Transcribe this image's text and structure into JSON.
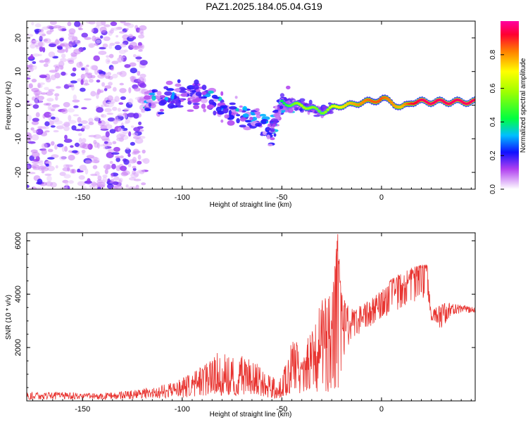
{
  "title": "PAZ1.2025.184.05.04.G19",
  "chart_data": [
    {
      "type": "heatmap",
      "xlabel": "Height of straight line (km)",
      "ylabel": "Frequency (Hz)",
      "xlim": [
        -178,
        47
      ],
      "ylim": [
        -25,
        25
      ],
      "xticks": [
        -150,
        -100,
        -50,
        0
      ],
      "yticks": [
        -20,
        -10,
        0,
        10,
        20
      ],
      "colorbar": {
        "label": "Normalized spectral amplitude",
        "range": [
          0,
          1
        ],
        "ticks": [
          "0.0",
          "0.2",
          "0.4",
          "0.6",
          "0.8"
        ]
      },
      "ridge": {
        "x": [
          -120,
          -100,
          -90,
          -80,
          -70,
          -60,
          -55,
          -50,
          -45,
          -40,
          -35,
          -30,
          -25,
          -20,
          -15,
          -10,
          -5,
          0,
          5,
          10,
          15,
          20,
          25,
          30,
          35,
          40,
          45
        ],
        "freq": [
          1,
          3,
          2,
          -1,
          -3,
          -5,
          -7,
          1,
          0,
          0,
          -1,
          -2,
          -1,
          0,
          0,
          1,
          1,
          2,
          1,
          -1,
          1,
          1,
          1,
          1,
          1,
          1,
          1
        ],
        "amplitude": [
          0.3,
          0.35,
          0.3,
          0.3,
          0.3,
          0.3,
          0.25,
          0.4,
          0.5,
          0.6,
          0.55,
          0.5,
          0.65,
          0.7,
          0.75,
          0.8,
          0.85,
          0.85,
          0.8,
          0.75,
          0.9,
          0.95,
          0.95,
          0.95,
          0.95,
          0.95,
          0.95
        ]
      }
    },
    {
      "type": "line",
      "xlabel": "Height of straight line (km)",
      "ylabel": "SNR (10 * v/v)",
      "xlim": [
        -178,
        47
      ],
      "ylim": [
        0,
        6300
      ],
      "xticks": [
        -150,
        -100,
        -50,
        0
      ],
      "yticks": [
        2000,
        4000,
        6000
      ],
      "series": [
        {
          "color": "#e8322e",
          "x": [
            -178,
            -170,
            -160,
            -150,
            -140,
            -130,
            -120,
            -110,
            -100,
            -95,
            -90,
            -85,
            -80,
            -75,
            -70,
            -65,
            -60,
            -55,
            -50,
            -45,
            -40,
            -35,
            -30,
            -25,
            -22,
            -20,
            -15,
            -10,
            -5,
            0,
            5,
            10,
            15,
            20,
            23,
            25,
            30,
            35,
            40,
            47
          ],
          "y": [
            150,
            200,
            200,
            180,
            180,
            200,
            250,
            350,
            450,
            650,
            750,
            850,
            800,
            700,
            800,
            750,
            650,
            400,
            300,
            1200,
            1300,
            1600,
            2000,
            2500,
            6100,
            3000,
            2800,
            3000,
            3400,
            3600,
            4200,
            4400,
            4600,
            4900,
            4950,
            3100,
            3400,
            3500,
            3450,
            3400
          ],
          "y_min": [
            50,
            50,
            50,
            50,
            50,
            60,
            80,
            100,
            120,
            150,
            150,
            200,
            200,
            200,
            200,
            200,
            150,
            100,
            100,
            200,
            300,
            300,
            300,
            300,
            500,
            1000,
            2200,
            2600,
            2800,
            3100,
            3200,
            3500,
            3700,
            3800,
            3900,
            3000,
            2700,
            3200,
            3300,
            3300
          ],
          "y_max": [
            350,
            300,
            350,
            300,
            300,
            350,
            450,
            600,
            850,
            1100,
            1300,
            1700,
            1900,
            1600,
            1700,
            1500,
            1300,
            900,
            900,
            2300,
            2200,
            2800,
            3800,
            4200,
            6200,
            4000,
            3500,
            3600,
            3900,
            4200,
            4600,
            4800,
            5000,
            5100,
            5100,
            3400,
            3650,
            3700,
            3600,
            3500
          ]
        }
      ]
    }
  ]
}
